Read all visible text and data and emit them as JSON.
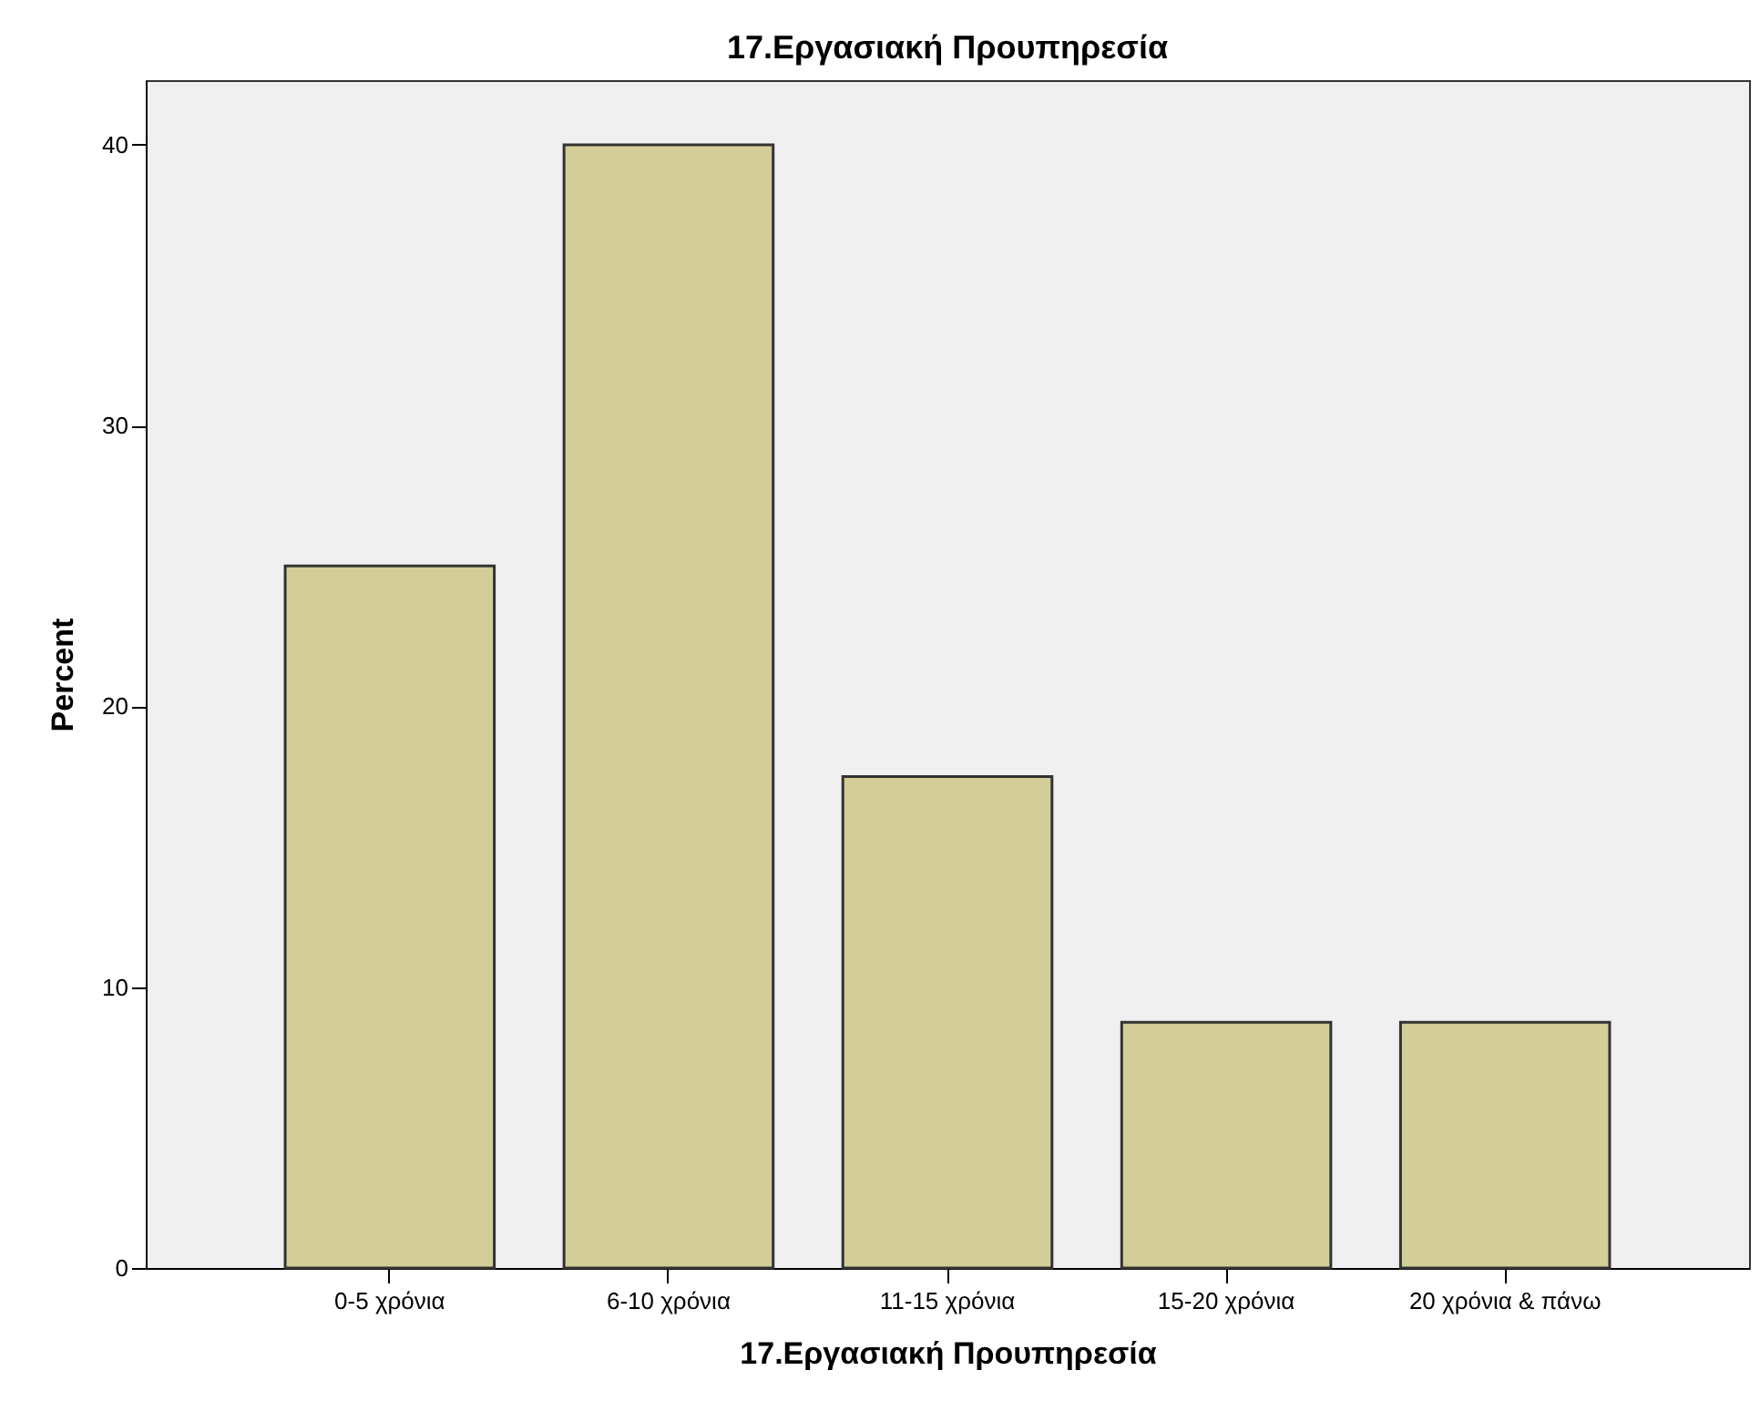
{
  "chart_data": {
    "type": "bar",
    "title": "17.Εργασιακή Προυπηρεσία",
    "xlabel": "17.Εργασιακή Προυπηρεσία",
    "ylabel": "Percent",
    "categories": [
      "0-5 χρόνια",
      "6-10 χρόνια",
      "11-15 χρόνια",
      "15-20 χρόνια",
      "20 χρόνια & πάνω"
    ],
    "values": [
      25,
      40,
      17.5,
      8.75,
      8.75
    ],
    "color": "#d3ce97",
    "ylim": [
      0,
      42.3
    ],
    "yticks": [
      0,
      10,
      20,
      30,
      40
    ],
    "grid": false
  }
}
